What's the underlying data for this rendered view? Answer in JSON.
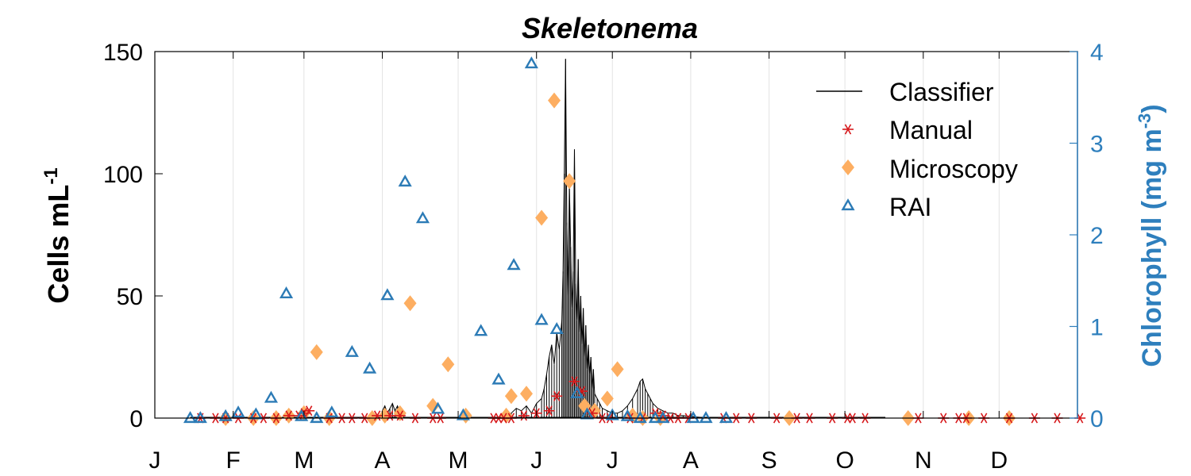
{
  "chart_data": {
    "type": "scatter",
    "title": "Skeletonema",
    "ylabel_left": {
      "base": "Cells mL",
      "sup": "-1"
    },
    "ylabel_right": {
      "base": "Chlorophyll (mg m",
      "sup": "-3",
      "suffix": ")"
    },
    "xlim": [
      1,
      366
    ],
    "ylim_left": [
      0,
      150
    ],
    "ylim_right": [
      0,
      4
    ],
    "yticks_left": [
      0,
      50,
      100,
      150
    ],
    "yticks_right": [
      0,
      1,
      2,
      3,
      4
    ],
    "x_ticks": [
      {
        "day": 1,
        "label": "J"
      },
      {
        "day": 32,
        "label": "F"
      },
      {
        "day": 60,
        "label": "M"
      },
      {
        "day": 91,
        "label": "A"
      },
      {
        "day": 121,
        "label": "M"
      },
      {
        "day": 152,
        "label": "J"
      },
      {
        "day": 182,
        "label": "J"
      },
      {
        "day": 213,
        "label": "A"
      },
      {
        "day": 244,
        "label": "S"
      },
      {
        "day": 274,
        "label": "O"
      },
      {
        "day": 305,
        "label": "N"
      },
      {
        "day": 335,
        "label": "D"
      }
    ],
    "grid": "vertical",
    "legend_position": "top-right",
    "colors": {
      "classifier": "#000000",
      "manual": "#d7191c",
      "microscopy": "#fdae61",
      "rai": "#2c7bb6",
      "right_axis": "#2e7fbd"
    },
    "series": [
      {
        "name": "Classifier",
        "axis": "left",
        "style": "line",
        "x": [
          90,
          91,
          92,
          93,
          94,
          95,
          96,
          97,
          98,
          99,
          100,
          140,
          142,
          144,
          146,
          148,
          150,
          152,
          154,
          155,
          156,
          157,
          158,
          159,
          160,
          161,
          162,
          162.5,
          163,
          163.5,
          164,
          164.5,
          165,
          165.5,
          166,
          166.5,
          167,
          167.5,
          168,
          168.5,
          169,
          169.5,
          170,
          170.5,
          171,
          171.5,
          172,
          172.5,
          173,
          173.5,
          174,
          174.5,
          175,
          176,
          177,
          178,
          180,
          182,
          184,
          186,
          188,
          190,
          192,
          193,
          194,
          195,
          196,
          197,
          198,
          200,
          202,
          204,
          206,
          208,
          210,
          215,
          220
        ],
        "y": [
          0,
          3,
          5,
          2,
          4,
          6,
          3,
          5,
          2,
          1,
          0,
          0,
          2,
          4,
          3,
          5,
          2,
          6,
          8,
          12,
          18,
          25,
          30,
          22,
          35,
          28,
          40,
          60,
          100,
          147,
          80,
          50,
          95,
          70,
          45,
          60,
          110,
          55,
          40,
          65,
          35,
          50,
          30,
          45,
          25,
          38,
          20,
          30,
          18,
          25,
          12,
          20,
          10,
          8,
          6,
          4,
          3,
          2,
          2,
          3,
          5,
          8,
          12,
          15,
          16,
          12,
          10,
          8,
          6,
          4,
          3,
          2,
          2,
          1,
          1,
          0.5,
          0
        ]
      },
      {
        "name": "Manual",
        "axis": "left",
        "style": "asterisk",
        "x": [
          19,
          25,
          29,
          34,
          40,
          44,
          49,
          54,
          58,
          60,
          62,
          70,
          75,
          79,
          84,
          89,
          94,
          98,
          104,
          111,
          114,
          135,
          137,
          139,
          142,
          147,
          152,
          157,
          160,
          167,
          170,
          174,
          178,
          181,
          189,
          194,
          199,
          202,
          205,
          208,
          212,
          226,
          231,
          237,
          247,
          255,
          260,
          269,
          275,
          277,
          282,
          303,
          313,
          319,
          322,
          329,
          339,
          349,
          358,
          367
        ],
        "y": [
          0,
          0,
          0,
          0,
          0,
          0,
          0,
          1,
          1,
          2,
          3,
          0,
          0,
          0,
          0,
          1,
          1,
          1,
          0,
          0,
          0,
          0,
          0,
          0,
          0,
          1,
          2,
          3,
          9,
          15,
          11,
          2,
          0,
          0,
          0,
          0,
          2,
          1,
          0,
          0,
          0,
          0,
          0,
          0,
          0,
          0,
          0,
          0,
          0,
          0,
          0,
          0,
          0,
          0,
          0,
          0,
          0,
          0,
          0,
          0
        ]
      },
      {
        "name": "Microscopy",
        "axis": "left",
        "style": "diamond",
        "x": [
          29,
          40,
          49,
          54,
          60,
          65,
          70,
          87,
          92,
          98,
          102,
          111,
          117,
          124,
          140,
          142,
          148,
          154,
          159,
          165,
          171,
          175,
          180,
          184,
          190,
          194,
          201,
          252,
          299,
          323,
          339
        ],
        "y": [
          0,
          0,
          0,
          1,
          2,
          27,
          0,
          0,
          1,
          2,
          47,
          5,
          22,
          1,
          1,
          9,
          10,
          82,
          130,
          97,
          5,
          3,
          8,
          20,
          1,
          0,
          0,
          0,
          0,
          0,
          0
        ],
        "ymatch_fix": true
      },
      {
        "name": "RAI",
        "axis": "right",
        "style": "triangle",
        "x": [
          15,
          19,
          29,
          34,
          41,
          47,
          53,
          59,
          65,
          71,
          79,
          86,
          93,
          100,
          107,
          113,
          123,
          130,
          137,
          143,
          150,
          154,
          160,
          168,
          172,
          182,
          188,
          193,
          199,
          202,
          214,
          219,
          227
        ],
        "y": [
          0,
          0,
          0.02,
          0.06,
          0.04,
          0.22,
          1.36,
          0.02,
          0,
          0.06,
          0.72,
          0.54,
          1.34,
          2.58,
          2.18,
          0.1,
          0.03,
          0.95,
          0.42,
          1.67,
          3.87,
          1.07,
          0.97,
          0.27,
          0.04,
          0.03,
          0.02,
          0,
          0,
          0,
          0,
          0,
          0
        ]
      }
    ]
  }
}
